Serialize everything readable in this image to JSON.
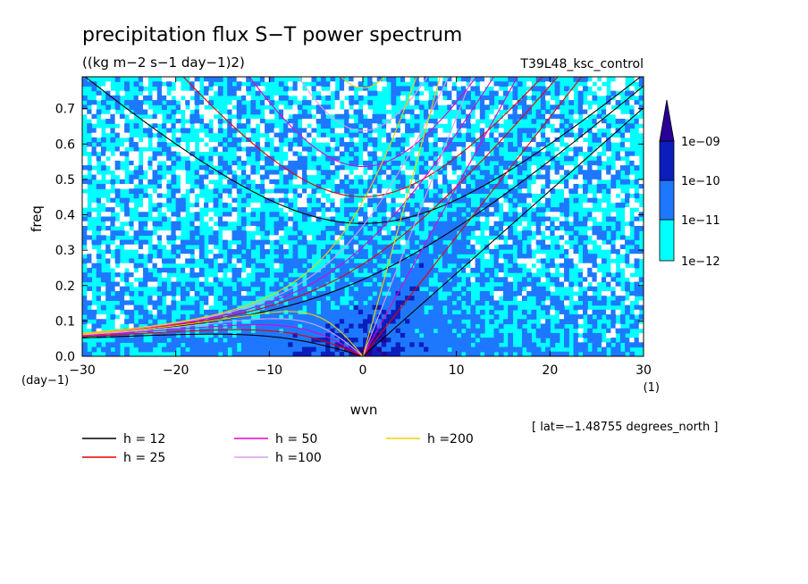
{
  "chart_data": {
    "type": "heatmap",
    "title": "precipitation flux S−T power spectrum",
    "subtitle": "((kg m−2 s−1 day−1)2)",
    "run_label": "T39L48_ksc_control",
    "xlabel": "wvn",
    "ylabel": "freq",
    "x_unit": "(1)",
    "y_unit": "(day−1)",
    "xlim": [
      -30,
      30
    ],
    "ylim": [
      0,
      0.79
    ],
    "x_ticks": [
      "−30",
      "−20",
      "−10",
      "0",
      "10",
      "20",
      "30"
    ],
    "x_tick_values": [
      -30,
      -20,
      -10,
      0,
      10,
      20,
      30
    ],
    "y_ticks": [
      "0.0",
      "0.1",
      "0.2",
      "0.3",
      "0.4",
      "0.5",
      "0.6",
      "0.7"
    ],
    "y_tick_values": [
      0,
      0.1,
      0.2,
      0.3,
      0.4,
      0.5,
      0.6,
      0.7
    ],
    "colorbar": {
      "labels": [
        "1e−09",
        "1e−10",
        "1e−11",
        "1e−12"
      ],
      "levels": [
        1e-12,
        1e-11,
        1e-10,
        1e-09
      ],
      "colors": [
        "#00ffff",
        "#1e78ff",
        "#0a1ebe",
        "#280096",
        "#4b0096"
      ]
    },
    "lat_note": "[ lat=−1.48755 degrees_north ]",
    "dispersion_curves": [
      {
        "name": "h = 12",
        "h": 12,
        "color": "#000000"
      },
      {
        "name": "h = 25",
        "h": 25,
        "color": "#e60000"
      },
      {
        "name": "h = 50",
        "h": 50,
        "color": "#e600c8"
      },
      {
        "name": "h =100",
        "h": 100,
        "color": "#d8a0f0"
      },
      {
        "name": "h =200",
        "h": 200,
        "color": "#f0d000"
      }
    ]
  }
}
